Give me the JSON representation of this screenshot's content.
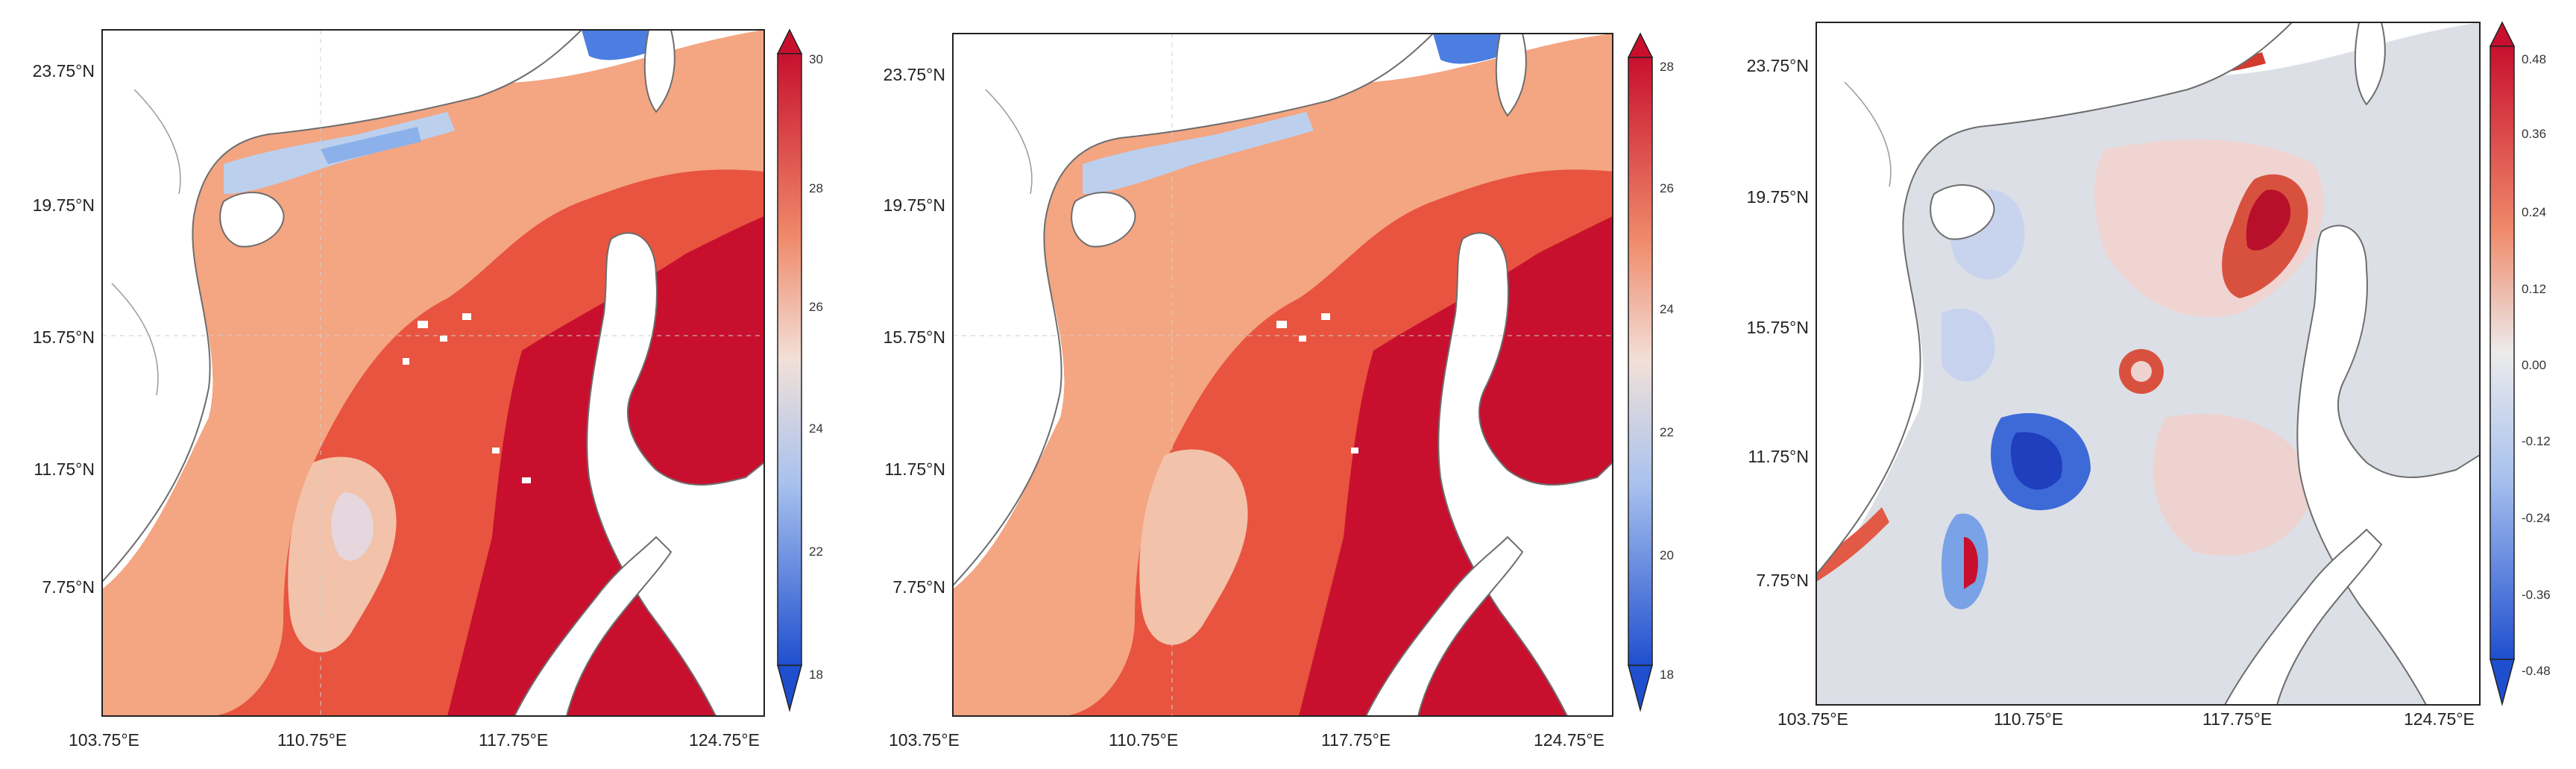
{
  "panels": [
    {
      "y_ticks": [
        "23.75°N",
        "19.75°N",
        "15.75°N",
        "11.75°N",
        "7.75°N"
      ],
      "x_ticks": [
        "103.75°E",
        "110.75°E",
        "117.75°E",
        "124.75°E"
      ],
      "colorbar": {
        "ticks": [
          "30",
          "28",
          "26",
          "24",
          "22",
          "20",
          "18"
        ],
        "colors": [
          "#c8102e",
          "#e8543f",
          "#f4a582",
          "#f2dcd0",
          "#cfd6ea",
          "#7aa2e6",
          "#1f4fcf"
        ]
      }
    },
    {
      "y_ticks": [
        "23.75°N",
        "19.75°N",
        "15.75°N",
        "11.75°N",
        "7.75°N"
      ],
      "x_ticks": [
        "103.75°E",
        "110.75°E",
        "117.75°E",
        "124.75°E"
      ],
      "colorbar": {
        "ticks": [
          "28",
          "26",
          "24",
          "22",
          "20",
          "18"
        ],
        "colors": [
          "#c8102e",
          "#e8543f",
          "#f4a582",
          "#f2dcd0",
          "#cfd6ea",
          "#7aa2e6",
          "#1f4fcf"
        ]
      }
    },
    {
      "y_ticks": [
        "23.75°N",
        "19.75°N",
        "15.75°N",
        "11.75°N",
        "7.75°N"
      ],
      "x_ticks": [
        "103.75°E",
        "110.75°E",
        "117.75°E",
        "124.75°E"
      ],
      "colorbar": {
        "ticks": [
          "0.48",
          "0.36",
          "0.24",
          "0.12",
          "0.00",
          "-0.12",
          "-0.24",
          "-0.36",
          "-0.48"
        ],
        "colors": [
          "#c8102e",
          "#e8543f",
          "#f4a582",
          "#f2dcd0",
          "#cfd6ea",
          "#7aa2e6",
          "#1f4fcf"
        ]
      }
    }
  ]
}
